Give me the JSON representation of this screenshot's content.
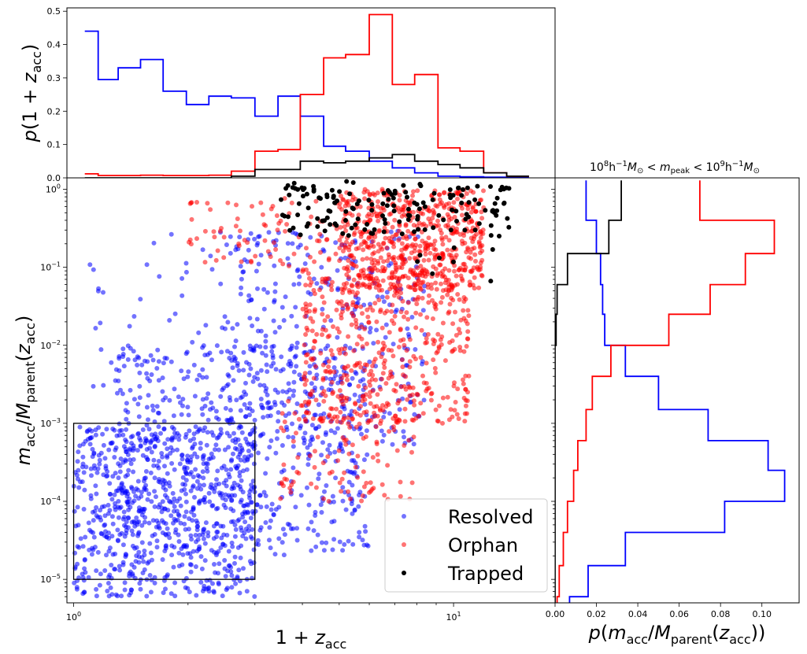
{
  "chart_data": [
    {
      "type": "scatter",
      "panel": "main",
      "xlabel": "1 + z_acc",
      "ylabel": "m_acc / M_parent(z_acc)",
      "xscale": "log",
      "yscale": "log",
      "xlim": [
        0.96,
        18.5
      ],
      "ylim": [
        5e-06,
        1.4
      ],
      "xticks": [
        {
          "value": 1,
          "base": "10",
          "exp": "0"
        },
        {
          "value": 10,
          "base": "10",
          "exp": "1"
        }
      ],
      "yticks": [
        {
          "value": 1e-05,
          "base": "10",
          "exp": "−5"
        },
        {
          "value": 0.0001,
          "base": "10",
          "exp": "−4"
        },
        {
          "value": 0.001,
          "base": "10",
          "exp": "−3"
        },
        {
          "value": 0.01,
          "base": "10",
          "exp": "−2"
        },
        {
          "value": 0.1,
          "base": "10",
          "exp": "−1"
        },
        {
          "value": 1,
          "base": "10",
          "exp": "0"
        }
      ],
      "selection_box": {
        "x": [
          1.0,
          3.0
        ],
        "y": [
          1e-05,
          0.001
        ]
      },
      "legend_position": "lower-right",
      "series": [
        {
          "name": "Resolved",
          "color": "#0000ff",
          "marker": "circle",
          "alpha": 0.55,
          "clusters": [
            {
              "x": [
                1.0,
                3.0
              ],
              "y": [
                6e-06,
                0.0009
              ],
              "n": 700
            },
            {
              "x": [
                1.3,
                6.0
              ],
              "y": [
                2e-05,
                0.01
              ],
              "n": 550
            },
            {
              "x": [
                2.5,
                8.5
              ],
              "y": [
                0.0005,
                0.3
              ],
              "n": 350
            },
            {
              "x": [
                1.1,
                3.5
              ],
              "y": [
                0.001,
                0.3
              ],
              "n": 70
            }
          ]
        },
        {
          "name": "Orphan",
          "color": "#ff0000",
          "marker": "circle",
          "alpha": 0.55,
          "clusters": [
            {
              "x": [
                5.0,
                12.0
              ],
              "y": [
                0.05,
                1.0
              ],
              "n": 600
            },
            {
              "x": [
                4.0,
                11.0
              ],
              "y": [
                0.001,
                0.1
              ],
              "n": 500
            },
            {
              "x": [
                3.5,
                8.0
              ],
              "y": [
                0.0001,
                0.002
              ],
              "n": 120
            },
            {
              "x": [
                2.0,
                5.0
              ],
              "y": [
                0.1,
                0.8
              ],
              "n": 80
            }
          ]
        },
        {
          "name": "Trapped",
          "color": "#000000",
          "marker": "circle",
          "alpha": 1.0,
          "clusters": [
            {
              "x": [
                3.5,
                14.0
              ],
              "y": [
                0.25,
                1.3
              ],
              "n": 160
            },
            {
              "x": [
                8.0,
                13.0
              ],
              "y": [
                0.06,
                0.25
              ],
              "n": 8
            }
          ]
        }
      ]
    },
    {
      "type": "step",
      "panel": "top",
      "ylabel": "p(1 + z_acc)",
      "ylim": [
        0,
        0.51
      ],
      "yticks": [
        "0.0",
        "0.1",
        "0.2",
        "0.3",
        "0.4",
        "0.5"
      ],
      "bin_edges": [
        1.07,
        1.16,
        1.31,
        1.5,
        1.72,
        1.98,
        2.27,
        2.6,
        3.0,
        3.45,
        3.95,
        4.55,
        5.2,
        6.0,
        6.9,
        7.9,
        9.1,
        10.4,
        12.0,
        13.8,
        15.8
      ],
      "series": [
        {
          "name": "Resolved",
          "color": "#0000ff",
          "values": [
            0.44,
            0.295,
            0.33,
            0.355,
            0.26,
            0.22,
            0.245,
            0.24,
            0.185,
            0.245,
            0.185,
            0.095,
            0.08,
            0.05,
            0.03,
            0.015,
            0.005,
            0.003,
            0.002,
            0.001
          ]
        },
        {
          "name": "Orphan",
          "color": "#ff0000",
          "values": [
            0.012,
            0.007,
            0.007,
            0.008,
            0.007,
            0.007,
            0.008,
            0.02,
            0.08,
            0.085,
            0.25,
            0.36,
            0.37,
            0.49,
            0.28,
            0.31,
            0.09,
            0.08,
            0.015,
            0.005
          ]
        },
        {
          "name": "Trapped",
          "color": "#000000",
          "values": [
            0.0,
            0.0,
            0.0,
            0.0,
            0.0,
            0.0,
            0.0,
            0.005,
            0.025,
            0.025,
            0.05,
            0.045,
            0.05,
            0.06,
            0.07,
            0.05,
            0.04,
            0.03,
            0.015,
            0.005
          ]
        }
      ]
    },
    {
      "type": "step",
      "panel": "right",
      "orientation": "horizontal",
      "title": "10^8 h^-1 M⊙ < m_peak < 10^9 h^-1 M⊙",
      "xlabel": "p(m_acc / M_parent(z_acc))",
      "xlim": [
        0,
        0.118
      ],
      "xticks": [
        "0.00",
        "0.02",
        "0.04",
        "0.06",
        "0.08",
        "0.10"
      ],
      "bin_edges": [
        1e-06,
        2.5e-06,
        6e-06,
        1.5e-05,
        4e-05,
        0.0001,
        0.00025,
        0.0006,
        0.0015,
        0.004,
        0.01,
        0.025,
        0.06,
        0.15,
        0.4,
        1.3
      ],
      "series": [
        {
          "name": "Resolved",
          "color": "#0000ff",
          "values": [
            0.004,
            0.007,
            0.016,
            0.034,
            0.082,
            0.111,
            0.103,
            0.074,
            0.05,
            0.034,
            0.024,
            0.023,
            0.022,
            0.02,
            0.015
          ]
        },
        {
          "name": "Orphan",
          "color": "#ff0000",
          "values": [
            0.0005,
            0.001,
            0.002,
            0.004,
            0.006,
            0.009,
            0.011,
            0.015,
            0.018,
            0.027,
            0.055,
            0.075,
            0.092,
            0.106,
            0.07
          ]
        },
        {
          "name": "Trapped",
          "color": "#000000",
          "values": [
            0,
            0,
            0,
            0,
            0,
            0,
            0,
            0,
            0,
            0,
            0.0005,
            0.001,
            0.006,
            0.026,
            0.032
          ]
        }
      ]
    }
  ]
}
